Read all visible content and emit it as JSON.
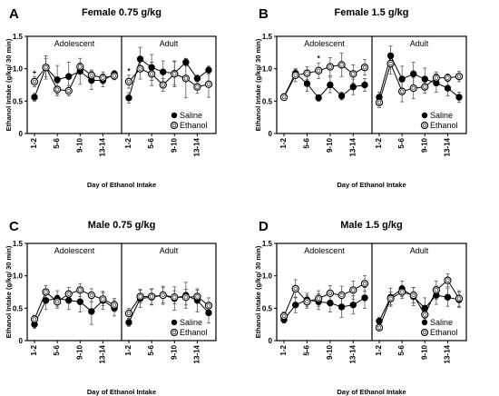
{
  "figure": {
    "panels": [
      {
        "letter": "A",
        "title": "Female 0.75 g/kg",
        "sections": [
          "Adolescent",
          "Adult"
        ],
        "ylabel": "Ethanol Intake (g/kg/ 30 min)",
        "xlabel": "Day of Ethanol Intake",
        "legend": [
          "Saline",
          "Ethanol"
        ],
        "annotations": [
          {
            "text": "+",
            "section": 0,
            "x": 1
          },
          {
            "text": "*",
            "section": 1,
            "x": 1
          }
        ]
      },
      {
        "letter": "B",
        "title": "Female 1.5 g/kg",
        "sections": [
          "Adolescent",
          "Adult"
        ],
        "ylabel": "Ethanol Intake (g/kg/ 30 min)",
        "xlabel": "Day of Ethanol Intake",
        "legend": [
          "Saline",
          "Ethanol"
        ],
        "annotations": [
          {
            "text": "*",
            "section": 0,
            "x": 7
          },
          {
            "text": "*",
            "section": 0,
            "x": 10
          },
          {
            "text": "*",
            "section": 0,
            "x": 14
          }
        ]
      },
      {
        "letter": "C",
        "title": "Male 0.75 g/kg",
        "sections": [
          "Adolescent",
          "Adult"
        ],
        "ylabel": "Ethanol Intake (g/kg/ 30 min)",
        "xlabel": "Day of Ethanol Intake",
        "legend": [
          "Saline",
          "Ethanol"
        ],
        "annotations": []
      },
      {
        "letter": "D",
        "title": "Male 1.5 g/kg",
        "sections": [
          "Adolescent",
          "Adult"
        ],
        "ylabel": "Ethanol Intake (g/kg/ 30 min)",
        "xlabel": "Day of Ethanol Intake",
        "legend": [
          "Saline",
          "Ethanol"
        ],
        "annotations": []
      }
    ],
    "colors": {
      "saline": "#000000",
      "ethanol_fill": "#ffffff",
      "ethanol_stroke": "#000000",
      "axis": "#000000",
      "error": "#555555"
    }
  },
  "chart_data": [
    {
      "type": "line",
      "title": "Female 0.75 g/kg",
      "xlabel": "Day of Ethanol Intake",
      "ylabel": "Ethanol Intake (g/kg/ 30 min)",
      "ylim": [
        0,
        1.5
      ],
      "yticks": [
        "0",
        "0.5",
        "1.0",
        "1.5"
      ],
      "xtick_labels": [
        "1-2",
        "5-6",
        "9-10",
        "13-14"
      ],
      "xtick_days": [
        1,
        5,
        9,
        13
      ],
      "grid": false,
      "legend_position": "bottom-right",
      "sections": [
        {
          "name": "Adolescent",
          "x": [
            1,
            3,
            5,
            7,
            9,
            11,
            13,
            15
          ],
          "series": [
            {
              "name": "Saline",
              "values": [
                0.56,
                1.02,
                0.83,
                0.88,
                0.96,
                0.82,
                0.82,
                0.92
              ],
              "errors": [
                0.06,
                0.18,
                0.22,
                0.22,
                0.2,
                0.14,
                0.1,
                0.05
              ]
            },
            {
              "name": "Ethanol",
              "values": [
                0.8,
                1.02,
                0.68,
                0.66,
                1.03,
                0.9,
                0.86,
                0.89
              ],
              "errors": [
                0.08,
                0.14,
                0.1,
                0.08,
                0.06,
                0.08,
                0.09,
                0.06
              ]
            }
          ]
        },
        {
          "name": "Adult",
          "x": [
            1,
            3,
            5,
            7,
            9,
            11,
            13,
            15
          ],
          "series": [
            {
              "name": "Saline",
              "values": [
                0.55,
                1.15,
                1.02,
                0.95,
                0.93,
                1.1,
                0.85,
                0.98
              ],
              "errors": [
                0.08,
                0.18,
                0.2,
                0.17,
                0.18,
                0.06,
                0.05,
                0.06
              ]
            },
            {
              "name": "Ethanol",
              "values": [
                0.8,
                1.0,
                0.92,
                0.75,
                0.92,
                0.85,
                0.72,
                0.76
              ],
              "errors": [
                0.1,
                0.16,
                0.18,
                0.1,
                0.2,
                0.3,
                0.1,
                0.2
              ]
            }
          ]
        }
      ]
    },
    {
      "type": "line",
      "title": "Female 1.5 g/kg",
      "xlabel": "Day of Ethanol Intake",
      "ylabel": "Ethanol Intake (g/kg/ 30 min)",
      "ylim": [
        0,
        1.5
      ],
      "yticks": [
        "0",
        "0.5",
        "1.0",
        "1.5"
      ],
      "xtick_labels": [
        "1-2",
        "5-6",
        "9-10",
        "13-14"
      ],
      "xtick_days": [
        1,
        5,
        9,
        13
      ],
      "grid": false,
      "legend_position": "bottom-right",
      "sections": [
        {
          "name": "Adolescent",
          "x": [
            1,
            3,
            5,
            7,
            9,
            11,
            13,
            15
          ],
          "series": [
            {
              "name": "Saline",
              "values": [
                0.57,
                0.93,
                0.77,
                0.55,
                0.75,
                0.58,
                0.72,
                0.75
              ],
              "errors": [
                0.04,
                0.06,
                0.12,
                0.05,
                0.12,
                0.06,
                0.12,
                0.1
              ]
            },
            {
              "name": "Ethanol",
              "values": [
                0.56,
                0.9,
                0.93,
                0.97,
                1.03,
                1.06,
                0.92,
                1.02
              ],
              "errors": [
                0.04,
                0.1,
                0.1,
                0.12,
                0.14,
                0.18,
                0.14,
                0.12
              ]
            }
          ]
        },
        {
          "name": "Adult",
          "x": [
            1,
            3,
            5,
            7,
            9,
            11,
            13,
            15
          ],
          "series": [
            {
              "name": "Saline",
              "values": [
                0.56,
                1.2,
                0.84,
                0.92,
                0.84,
                0.78,
                0.7,
                0.56
              ],
              "errors": [
                0.08,
                0.15,
                0.2,
                0.18,
                0.17,
                0.14,
                0.12,
                0.08
              ]
            },
            {
              "name": "Ethanol",
              "values": [
                0.48,
                1.08,
                0.65,
                0.7,
                0.72,
                0.86,
                0.86,
                0.88
              ],
              "errors": [
                0.08,
                0.16,
                0.16,
                0.16,
                0.1,
                0.09,
                0.06,
                0.08
              ]
            }
          ]
        }
      ]
    },
    {
      "type": "line",
      "title": "Male 0.75 g/kg",
      "xlabel": "Day of Ethanol Intake",
      "ylabel": "Ethanol Intake (g/kg/ 30 min)",
      "ylim": [
        0,
        1.5
      ],
      "yticks": [
        "0",
        "0.5",
        "1.0",
        "1.5"
      ],
      "xtick_labels": [
        "1-2",
        "5-6",
        "9-10",
        "13-14"
      ],
      "xtick_days": [
        1,
        5,
        9,
        13
      ],
      "grid": false,
      "legend_position": "bottom-right",
      "sections": [
        {
          "name": "Adolescent",
          "x": [
            1,
            3,
            5,
            7,
            9,
            11,
            13,
            15
          ],
          "series": [
            {
              "name": "Saline",
              "values": [
                0.25,
                0.62,
                0.65,
                0.62,
                0.6,
                0.45,
                0.62,
                0.5
              ],
              "errors": [
                0.06,
                0.14,
                0.12,
                0.14,
                0.16,
                0.2,
                0.14,
                0.12
              ]
            },
            {
              "name": "Ethanol",
              "values": [
                0.33,
                0.75,
                0.6,
                0.72,
                0.78,
                0.7,
                0.64,
                0.55
              ],
              "errors": [
                0.06,
                0.1,
                0.1,
                0.1,
                0.1,
                0.1,
                0.1,
                0.1
              ]
            }
          ]
        },
        {
          "name": "Adult",
          "x": [
            1,
            3,
            5,
            7,
            9,
            11,
            13,
            15
          ],
          "series": [
            {
              "name": "Saline",
              "values": [
                0.28,
                0.65,
                0.67,
                0.7,
                0.65,
                0.7,
                0.62,
                0.43
              ],
              "errors": [
                0.06,
                0.14,
                0.12,
                0.14,
                0.18,
                0.2,
                0.18,
                0.16
              ]
            },
            {
              "name": "Ethanol",
              "values": [
                0.42,
                0.68,
                0.68,
                0.7,
                0.67,
                0.67,
                0.68,
                0.54
              ],
              "errors": [
                0.08,
                0.1,
                0.12,
                0.12,
                0.1,
                0.12,
                0.1,
                0.12
              ]
            }
          ]
        }
      ]
    },
    {
      "type": "line",
      "title": "Male 1.5 g/kg",
      "xlabel": "Day of Ethanol Intake",
      "ylabel": "Ethanol Intake (g/kg/ 30 min)",
      "ylim": [
        0,
        1.5
      ],
      "yticks": [
        "0",
        "0.5",
        "1.0",
        "1.5"
      ],
      "xtick_labels": [
        "1-2",
        "5-6",
        "9-10",
        "13-14"
      ],
      "xtick_days": [
        1,
        5,
        9,
        13
      ],
      "grid": false,
      "legend_position": "bottom-right",
      "sections": [
        {
          "name": "Adolescent",
          "x": [
            1,
            3,
            5,
            7,
            9,
            11,
            13,
            15
          ],
          "series": [
            {
              "name": "Saline",
              "values": [
                0.32,
                0.55,
                0.63,
                0.6,
                0.58,
                0.52,
                0.55,
                0.66
              ],
              "errors": [
                0.05,
                0.12,
                0.1,
                0.12,
                0.14,
                0.16,
                0.14,
                0.16
              ]
            },
            {
              "name": "Ethanol",
              "values": [
                0.38,
                0.8,
                0.6,
                0.65,
                0.73,
                0.7,
                0.78,
                0.88
              ],
              "errors": [
                0.06,
                0.14,
                0.1,
                0.12,
                0.12,
                0.14,
                0.14,
                0.12
              ]
            }
          ]
        },
        {
          "name": "Adult",
          "x": [
            1,
            3,
            5,
            7,
            9,
            11,
            13,
            15
          ],
          "series": [
            {
              "name": "Saline",
              "values": [
                0.3,
                0.67,
                0.8,
                0.68,
                0.5,
                0.7,
                0.67,
                0.63
              ],
              "errors": [
                0.06,
                0.14,
                0.12,
                0.14,
                0.16,
                0.14,
                0.14,
                0.12
              ]
            },
            {
              "name": "Ethanol",
              "values": [
                0.2,
                0.65,
                0.75,
                0.7,
                0.4,
                0.78,
                0.93,
                0.65
              ],
              "errors": [
                0.05,
                0.1,
                0.1,
                0.12,
                0.1,
                0.14,
                0.1,
                0.12
              ]
            }
          ]
        }
      ]
    }
  ]
}
